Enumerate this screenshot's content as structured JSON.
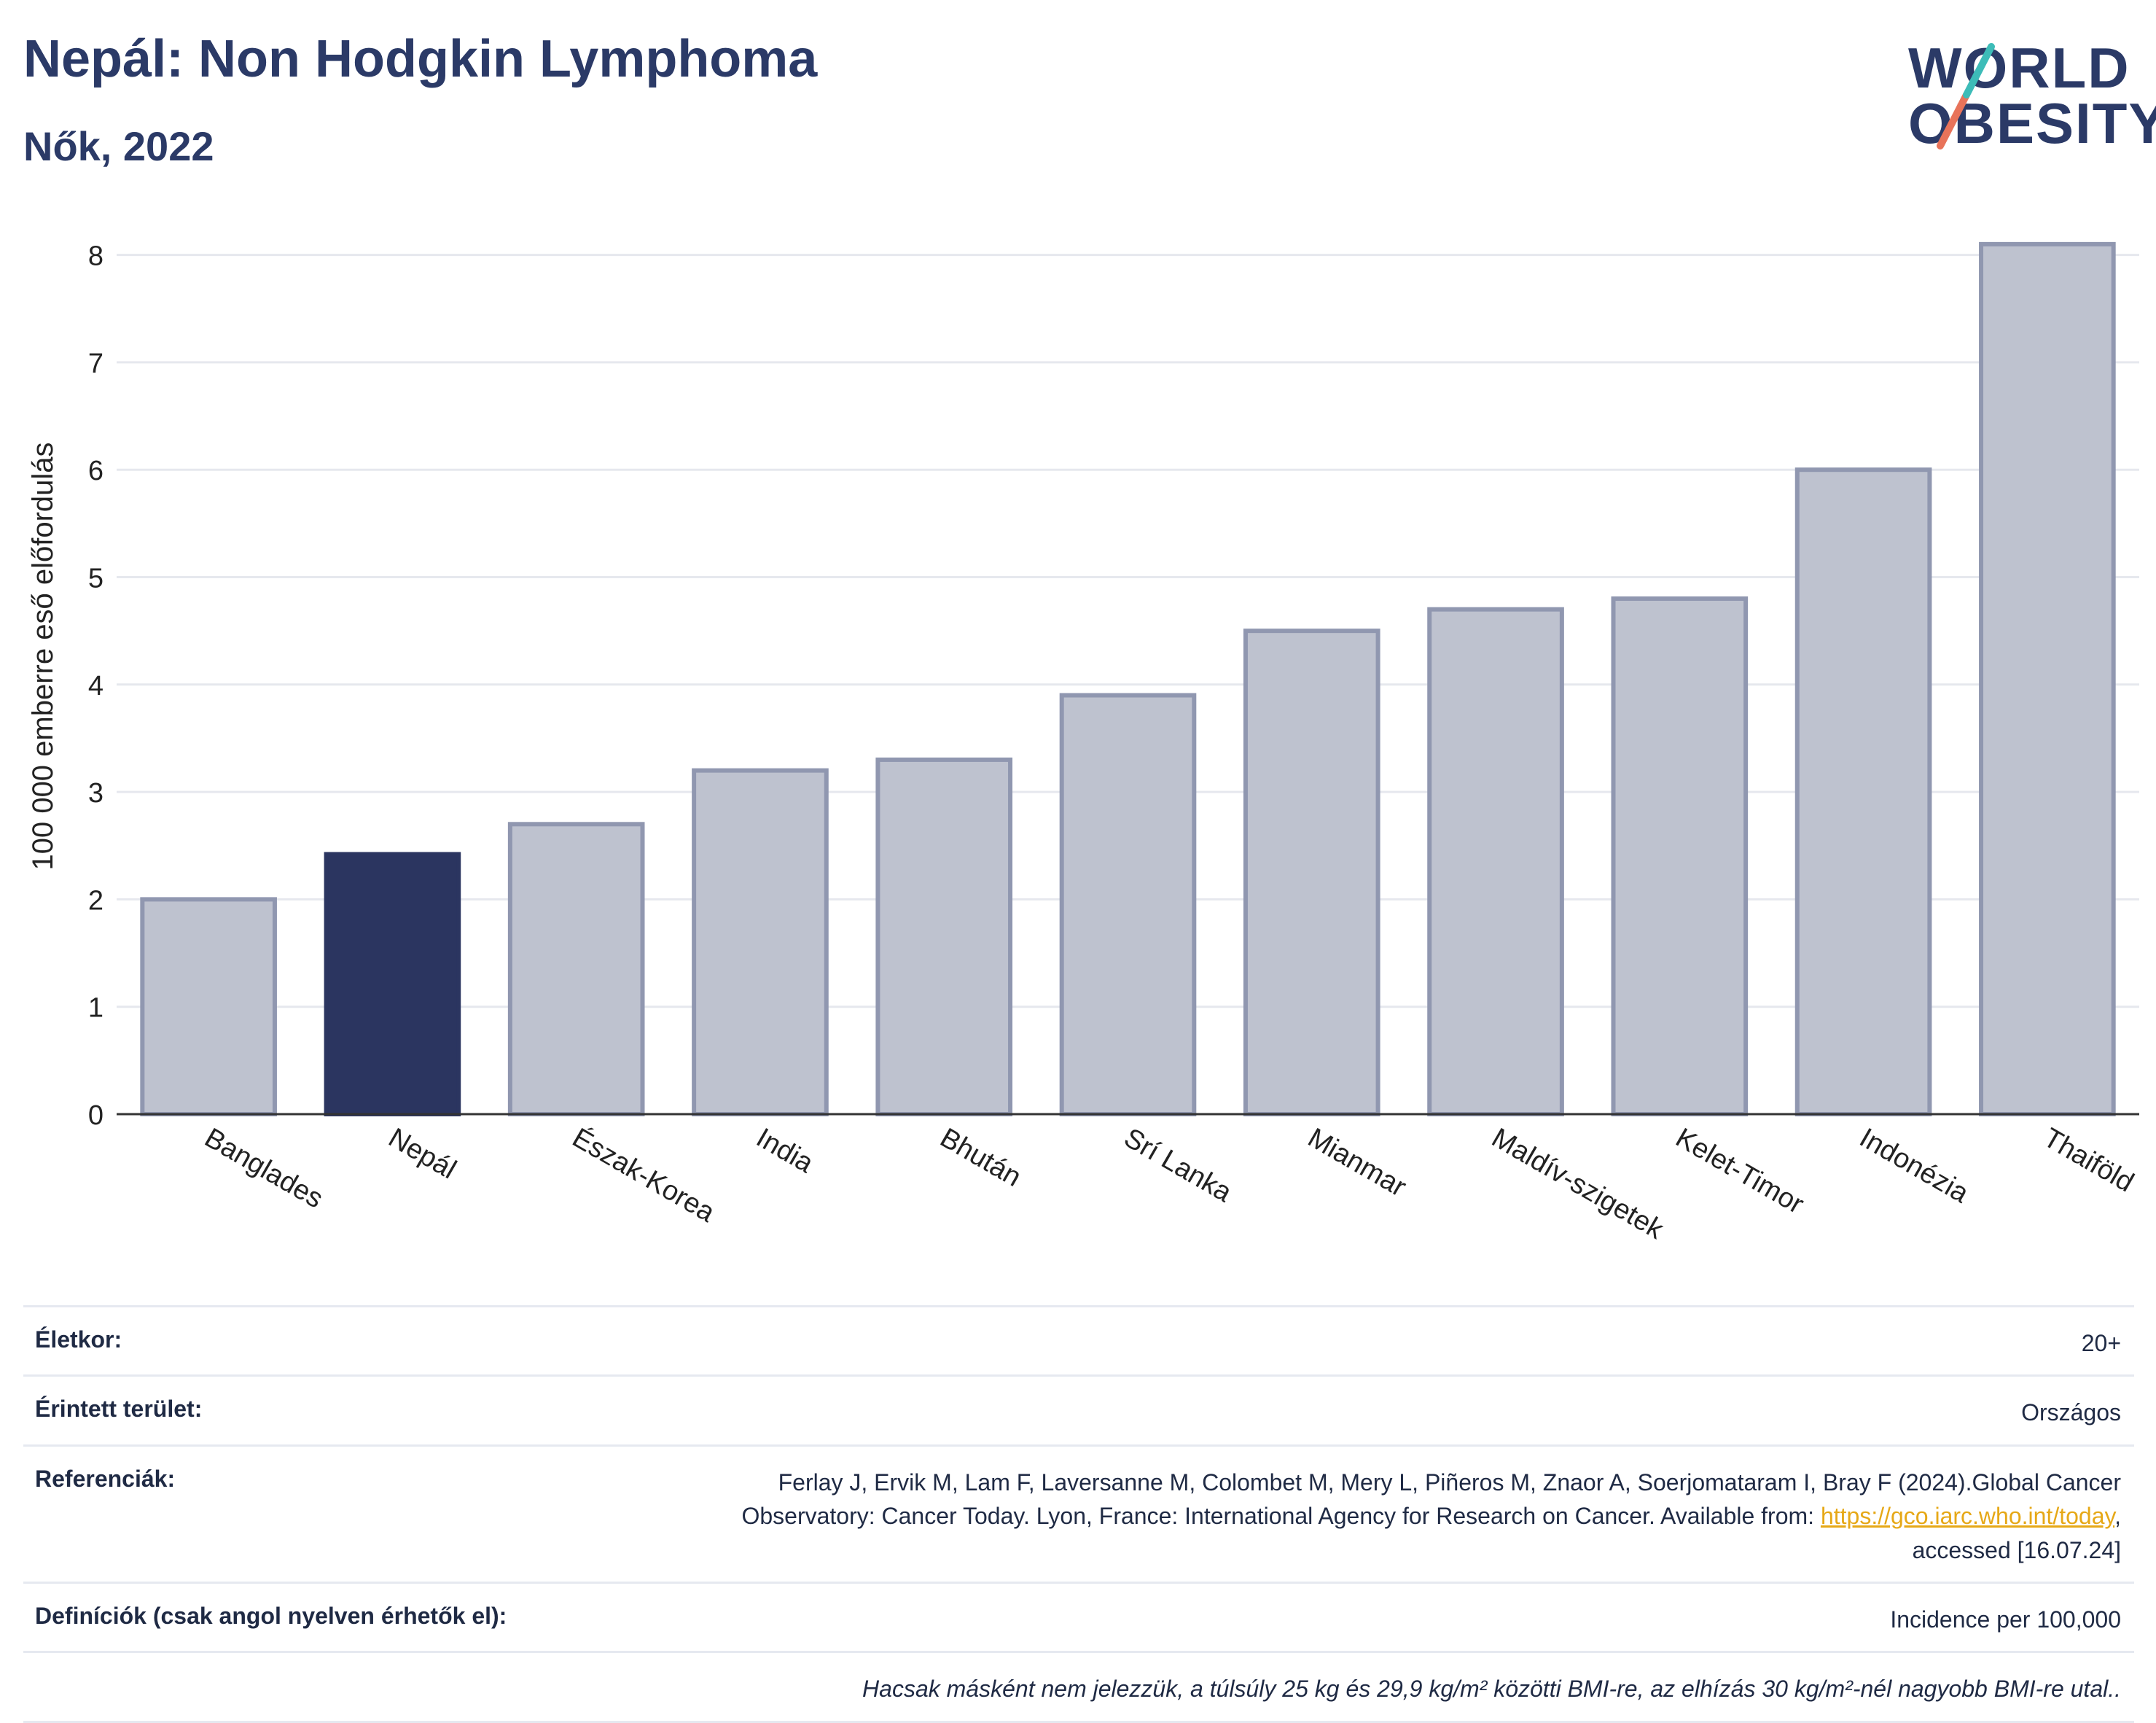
{
  "header": {
    "title": "Nepál: Non Hodgkin Lymphoma",
    "subtitle": "Nők, 2022"
  },
  "logo": {
    "line1": "WORLD",
    "line2": "OBESITY"
  },
  "colors": {
    "highlight": "#2b3560",
    "bar": "#bec2cf",
    "bar_edge": "#9097b0",
    "axis": "#333333",
    "grid": "#e6e8ee"
  },
  "chart_data": {
    "type": "bar",
    "title": "",
    "xlabel": "",
    "ylabel": "100 000 emberre eső előfordulás",
    "ylim": [
      0,
      8.2
    ],
    "yticks": [
      0,
      1,
      2,
      3,
      4,
      5,
      6,
      7,
      8
    ],
    "grid": true,
    "highlighted_category": "Nepál",
    "categories": [
      "Banglades",
      "Nepál",
      "Észak-Korea",
      "India",
      "Bhután",
      "Srí Lanka",
      "Mianmar",
      "Maldív-szigetek",
      "Kelet-Timor",
      "Indonézia",
      "Thaiföld"
    ],
    "values": [
      2.0,
      2.42,
      2.7,
      3.2,
      3.3,
      3.9,
      4.5,
      4.7,
      4.8,
      6.0,
      8.1
    ]
  },
  "info": {
    "rows": [
      {
        "label": "Életkor:",
        "value": "20+"
      },
      {
        "label": "Érintett terület:",
        "value": "Országos"
      },
      {
        "label": "Referenciák:",
        "value_line1": "Ferlay J, Ervik M, Lam F, Laversanne M, Colombet M, Mery L, Piñeros M, Znaor A, Soerjomataram I, Bray F (2024).Global Cancer",
        "value_line2": "Observatory: Cancer Today. Lyon, France: International Agency for Research on Cancer. Available from: ",
        "link": "https://gco.iarc.who.int/today",
        "value_line2_end": ",",
        "value_line3": "accessed [16.07.24]"
      },
      {
        "label": "Definíciók (csak angol nyelven érhetők el):",
        "value": "Incidence per 100,000"
      },
      {
        "label": "",
        "value": "Hacsak másként nem jelezzük, a túlsúly 25 kg és 29,9 kg/m² közötti BMI-re, az elhízás 30 kg/m²-nél nagyobb BMI-re utal.."
      }
    ]
  }
}
